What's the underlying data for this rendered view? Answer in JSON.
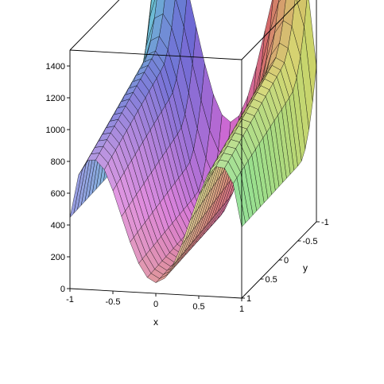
{
  "chart_data": {
    "type": "surface3d",
    "function": "surface with two valleys along x = ±0.7 separated by a central ridge at x = 0, rising toward the far y = -1 edge",
    "x": [
      -1,
      -0.8,
      -0.6,
      -0.4,
      -0.2,
      0,
      0.2,
      0.4,
      0.6,
      0.8,
      1
    ],
    "y": [
      -1,
      -0.8,
      -0.6,
      -0.4,
      -0.2,
      0,
      0.2,
      0.4,
      0.6,
      0.8,
      1
    ],
    "z_range": [
      0,
      1500
    ],
    "xlim": [
      -1,
      1
    ],
    "ylim": [
      -1,
      1
    ],
    "zlim": [
      0,
      1500
    ],
    "xlabel": "x",
    "ylabel": "y",
    "zlabel": "",
    "x_ticks": [
      -1,
      -0.5,
      0,
      0.5,
      1
    ],
    "x_tick_labels": [
      "-1",
      "-0.5",
      "0",
      "0.5",
      "1"
    ],
    "y_ticks": [
      -1,
      -0.5,
      0,
      0.5,
      1
    ],
    "y_tick_labels": [
      "-1",
      "-0.5",
      "0",
      "0.5",
      "1"
    ],
    "z_ticks": [
      0,
      200,
      400,
      600,
      800,
      1000,
      1200,
      1400
    ],
    "z_tick_labels": [
      "0",
      "200",
      "400",
      "600",
      "800",
      "1000",
      "1200",
      "1400"
    ],
    "box": "boxed",
    "grid": false,
    "shading": "rainbow-by-position",
    "mesh_color": "#000000"
  }
}
